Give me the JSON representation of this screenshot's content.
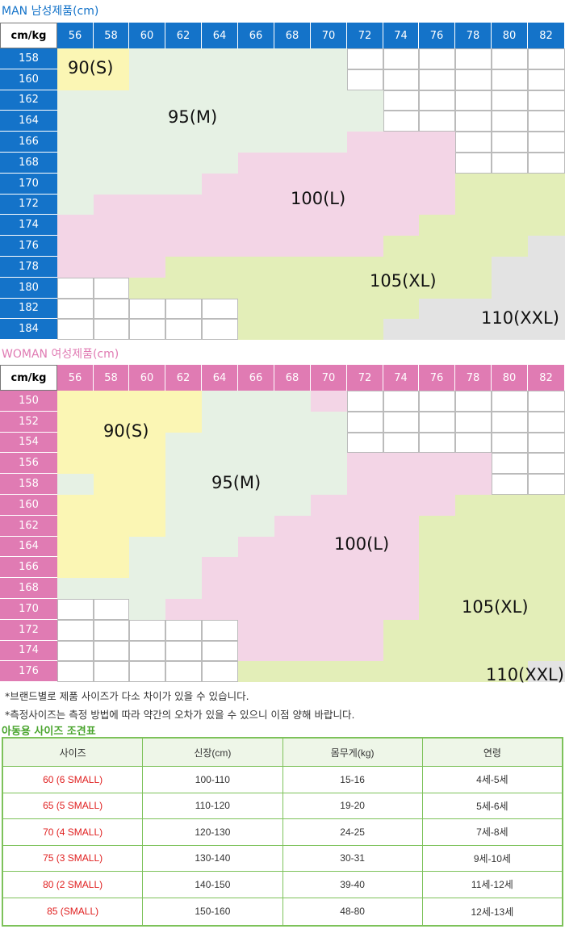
{
  "men": {
    "title": "MAN 남성제품(cm)",
    "corner": "cm/kg",
    "weights": [
      "56",
      "58",
      "60",
      "62",
      "64",
      "66",
      "68",
      "70",
      "72",
      "74",
      "76",
      "78",
      "80",
      "82"
    ],
    "heights": [
      "158",
      "160",
      "162",
      "164",
      "166",
      "168",
      "170",
      "172",
      "174",
      "176",
      "178",
      "180",
      "182",
      "184"
    ],
    "size_labels": [
      "90(S)",
      "95(M)",
      "100(L)",
      "105(XL)",
      "110(XXL)"
    ],
    "colors": {
      "header": "#1473c9",
      "row_header": "#1473c9"
    }
  },
  "women": {
    "title": "WOMAN 여성제품(cm)",
    "corner": "cm/kg",
    "weights": [
      "56",
      "58",
      "60",
      "62",
      "64",
      "66",
      "68",
      "70",
      "72",
      "74",
      "76",
      "78",
      "80",
      "82"
    ],
    "heights": [
      "150",
      "152",
      "154",
      "156",
      "158",
      "160",
      "162",
      "164",
      "166",
      "168",
      "170",
      "172",
      "174",
      "176"
    ],
    "size_labels": [
      "90(S)",
      "95(M)",
      "100(L)",
      "105(XL)",
      "110(XXL)"
    ],
    "colors": {
      "header": "#e07bb3",
      "row_header": "#e07bb3"
    }
  },
  "size_colors": {
    "S": "#fbf6b4",
    "M": "#e6f1e4",
    "L": "#f3d5e6",
    "XL": "#e3eeb8",
    "XXL": "#e3e3e3",
    "empty": "#ffffff"
  },
  "notes": [
    "*브랜드별로 제품 사이즈가 다소 차이가 있을 수 있습니다.",
    "*측정사이즈는 측정 방법에 따라 약간의 오차가 있을 수 있으니 이점 양해 바랍니다."
  ],
  "kids": {
    "title": "아동용 사이즈 조견표",
    "headers": [
      "사이즈",
      "신장(cm)",
      "몸무게(kg)",
      "연령"
    ],
    "rows": [
      [
        "60 (6 SMALL)",
        "100-110",
        "15-16",
        "4세-5세"
      ],
      [
        "65 (5 SMALL)",
        "110-120",
        "19-20",
        "5세-6세"
      ],
      [
        "70 (4 SMALL)",
        "120-130",
        "24-25",
        "7세-8세"
      ],
      [
        "75 (3 SMALL)",
        "130-140",
        "30-31",
        "9세-10세"
      ],
      [
        "80 (2 SMALL)",
        "140-150",
        "39-40",
        "11세-12세"
      ],
      [
        "85 (SMALL)",
        "150-160",
        "48-80",
        "12세-13세"
      ]
    ],
    "colors": {
      "header_bg": "#eef6e8",
      "border": "#7dc25a",
      "size_text": "#e02020"
    }
  }
}
